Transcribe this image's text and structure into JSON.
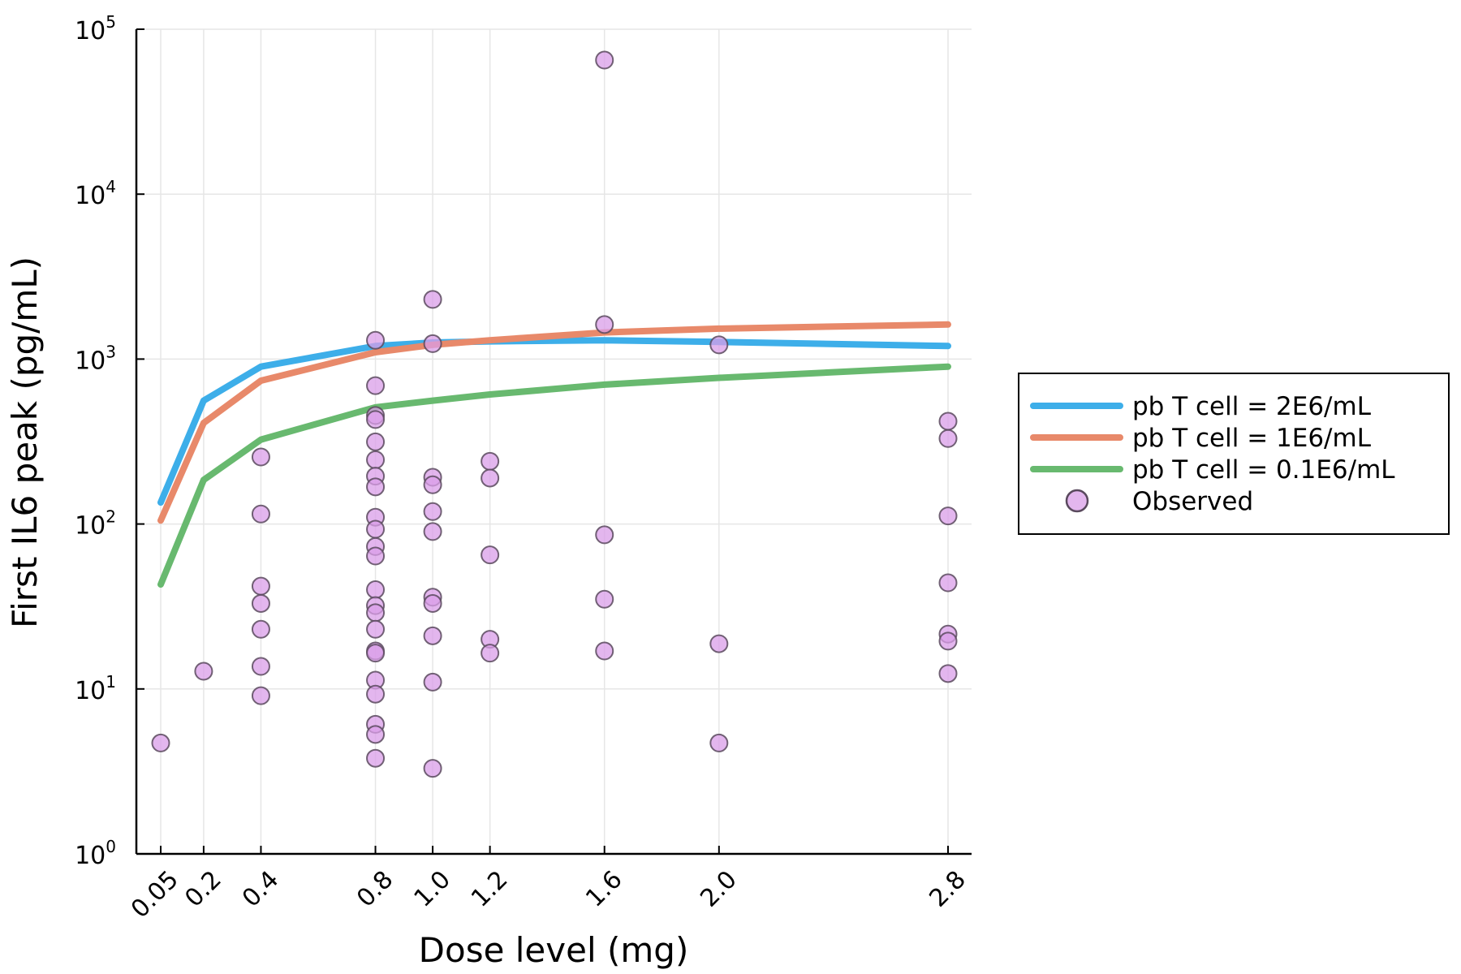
{
  "chart_data": {
    "type": "scatter",
    "xlabel": "Dose level (mg)",
    "ylabel": "First IL6 peak (pg/mL)",
    "x_scale": "linear",
    "y_scale": "log",
    "xlim": [
      0.0,
      2.85
    ],
    "ylim": [
      1,
      100000
    ],
    "x_ticks": [
      0.05,
      0.2,
      0.4,
      0.8,
      1.0,
      1.2,
      1.6,
      2.0,
      2.8
    ],
    "x_tick_labels": [
      "0.05",
      "0.2",
      "0.4",
      "0.8",
      "1.0",
      "1.2",
      "1.6",
      "2.0",
      "2.8"
    ],
    "y_ticks": [
      {
        "value": 1,
        "base": "10",
        "exp": "0"
      },
      {
        "value": 10,
        "base": "10",
        "exp": "1"
      },
      {
        "value": 100,
        "base": "10",
        "exp": "2"
      },
      {
        "value": 1000,
        "base": "10",
        "exp": "3"
      },
      {
        "value": 10000,
        "base": "10",
        "exp": "4"
      },
      {
        "value": 100000,
        "base": "10",
        "exp": "5"
      }
    ],
    "grid": true,
    "legend_position": "outside-right",
    "series": [
      {
        "name": "pb T cell = 2E6/mL",
        "kind": "line",
        "color": "#3daee9",
        "x": [
          0.05,
          0.2,
          0.4,
          0.8,
          1.0,
          1.2,
          1.6,
          2.0,
          2.8
        ],
        "y": [
          135,
          560,
          900,
          1200,
          1260,
          1280,
          1300,
          1270,
          1200
        ]
      },
      {
        "name": "pb T cell = 1E6/mL",
        "kind": "line",
        "color": "#e8896a",
        "x": [
          0.05,
          0.2,
          0.4,
          0.8,
          1.0,
          1.2,
          1.6,
          2.0,
          2.8
        ],
        "y": [
          105,
          410,
          740,
          1100,
          1220,
          1300,
          1450,
          1530,
          1620
        ]
      },
      {
        "name": "pb T cell = 0.1E6/mL",
        "kind": "line",
        "color": "#68b96f",
        "x": [
          0.05,
          0.2,
          0.4,
          0.8,
          1.0,
          1.2,
          1.6,
          2.0,
          2.8
        ],
        "y": [
          43,
          185,
          325,
          510,
          560,
          610,
          700,
          770,
          900
        ]
      },
      {
        "name": "Observed",
        "kind": "scatter",
        "color": "#d99ee8",
        "edge_color": "#5a4a5e",
        "points": [
          [
            0.05,
            4.7
          ],
          [
            0.2,
            12.8
          ],
          [
            0.4,
            255
          ],
          [
            0.4,
            115
          ],
          [
            0.4,
            42
          ],
          [
            0.4,
            33
          ],
          [
            0.4,
            23
          ],
          [
            0.4,
            13.7
          ],
          [
            0.4,
            9.1
          ],
          [
            0.8,
            1300
          ],
          [
            0.8,
            690
          ],
          [
            0.8,
            455
          ],
          [
            0.8,
            430
          ],
          [
            0.8,
            315
          ],
          [
            0.8,
            245
          ],
          [
            0.8,
            195
          ],
          [
            0.8,
            168
          ],
          [
            0.8,
            110
          ],
          [
            0.8,
            93
          ],
          [
            0.8,
            73
          ],
          [
            0.8,
            64
          ],
          [
            0.8,
            40
          ],
          [
            0.8,
            32
          ],
          [
            0.8,
            29
          ],
          [
            0.8,
            23
          ],
          [
            0.8,
            17
          ],
          [
            0.8,
            16.5
          ],
          [
            0.8,
            11.3
          ],
          [
            0.8,
            9.3
          ],
          [
            0.8,
            6.1
          ],
          [
            0.8,
            5.3
          ],
          [
            0.8,
            3.8
          ],
          [
            1.0,
            2300
          ],
          [
            1.0,
            1240
          ],
          [
            1.0,
            192
          ],
          [
            1.0,
            173
          ],
          [
            1.0,
            119
          ],
          [
            1.0,
            90
          ],
          [
            1.0,
            36
          ],
          [
            1.0,
            33
          ],
          [
            1.0,
            21
          ],
          [
            1.0,
            11
          ],
          [
            1.0,
            3.3
          ],
          [
            1.2,
            240
          ],
          [
            1.2,
            190
          ],
          [
            1.2,
            65
          ],
          [
            1.2,
            20
          ],
          [
            1.2,
            16.5
          ],
          [
            1.6,
            65000
          ],
          [
            1.6,
            1620
          ],
          [
            1.6,
            86
          ],
          [
            1.6,
            35
          ],
          [
            1.6,
            17
          ],
          [
            2.0,
            1220
          ],
          [
            2.0,
            18.8
          ],
          [
            2.0,
            4.7
          ],
          [
            2.8,
            420
          ],
          [
            2.8,
            330
          ],
          [
            2.8,
            112
          ],
          [
            2.8,
            44
          ],
          [
            2.8,
            21.5
          ],
          [
            2.8,
            19.5
          ],
          [
            2.8,
            12.4
          ]
        ]
      }
    ]
  }
}
